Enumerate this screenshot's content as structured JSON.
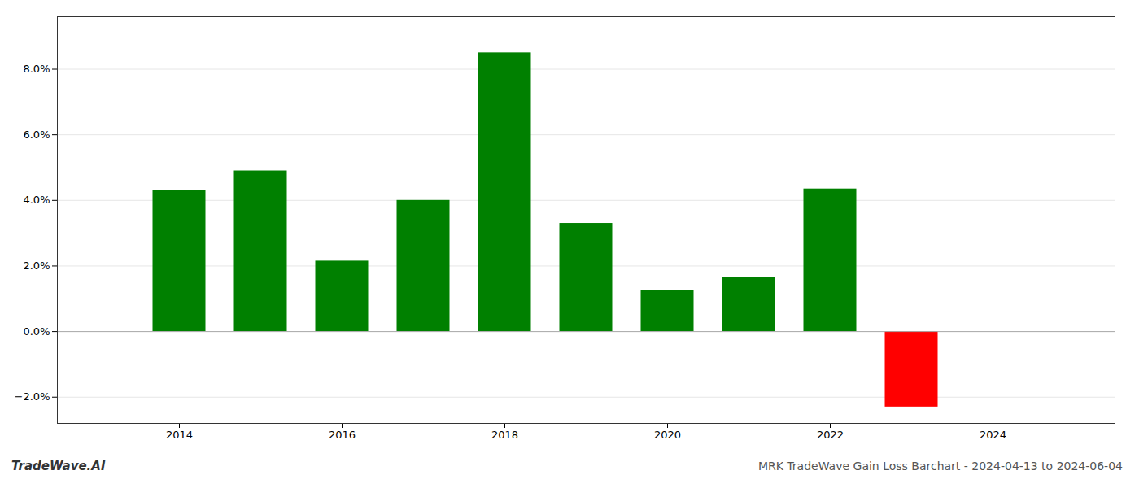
{
  "chart_data": {
    "type": "bar",
    "title": "MRK TradeWave Gain Loss Barchart - 2024-04-13 to 2024-06-04",
    "annotations": [
      "TradeWave.AI"
    ],
    "x": [
      2014,
      2015,
      2016,
      2017,
      2018,
      2019,
      2020,
      2021,
      2022,
      2023
    ],
    "values": [
      0.043,
      0.049,
      0.0215,
      0.04,
      0.085,
      0.033,
      0.0125,
      0.0165,
      0.0435,
      -0.023
    ],
    "colors": [
      "#008000",
      "#008000",
      "#008000",
      "#008000",
      "#008000",
      "#008000",
      "#008000",
      "#008000",
      "#008000",
      "#ff0000"
    ],
    "xlim": [
      2012.5,
      2025.5
    ],
    "xticks": [
      2014,
      2016,
      2018,
      2020,
      2022,
      2024
    ],
    "ylim": [
      -0.028,
      0.096
    ],
    "yticks": [
      {
        "value": -0.02,
        "label": "−2.0%"
      },
      {
        "value": 0.0,
        "label": "0.0%"
      },
      {
        "value": 0.02,
        "label": "2.0%"
      },
      {
        "value": 0.04,
        "label": "4.0%"
      },
      {
        "value": 0.06,
        "label": "6.0%"
      },
      {
        "value": 0.08,
        "label": "8.0%"
      }
    ],
    "grid": true
  }
}
